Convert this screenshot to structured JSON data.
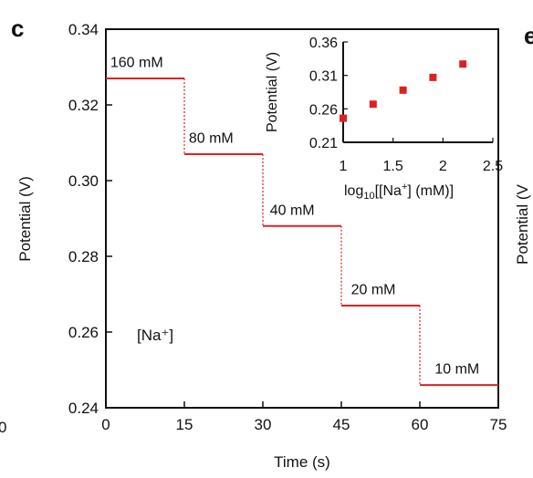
{
  "panel": {
    "letter": "c",
    "next_panel_fragment": "e",
    "edge_ylabel_fragment": "Potential (V",
    "edge_xtick_fragment": "0"
  },
  "colors": {
    "data": "#e02020",
    "axes": "#111111",
    "background": "#ffffff"
  },
  "chart_data": [
    {
      "type": "line",
      "subtitle": "[Na⁺]",
      "xlabel": "Time (s)",
      "ylabel": "Potential (V)",
      "xlim": [
        0,
        75
      ],
      "ylim": [
        0.24,
        0.34
      ],
      "xticks": [
        0,
        15,
        30,
        45,
        60,
        75
      ],
      "yticks": [
        0.24,
        0.26,
        0.28,
        0.3,
        0.32,
        0.34
      ],
      "xtick_labels": [
        "0",
        "15",
        "30",
        "45",
        "60",
        "75"
      ],
      "ytick_labels": [
        "0.24",
        "0.26",
        "0.28",
        "0.30",
        "0.32",
        "0.34"
      ],
      "grid": false,
      "series": [
        {
          "values": [
            [
              0,
              0.327
            ],
            [
              15,
              0.327
            ],
            [
              15,
              0.307
            ],
            [
              30,
              0.307
            ],
            [
              30,
              0.288
            ],
            [
              45,
              0.288
            ],
            [
              45,
              0.267
            ],
            [
              60,
              0.267
            ],
            [
              60,
              0.246
            ],
            [
              75,
              0.246
            ]
          ]
        }
      ],
      "annotations": [
        {
          "text": "160 mM",
          "x": 0.5,
          "y": 0.3295
        },
        {
          "text": "80 mM",
          "x": 15.5,
          "y": 0.3095
        },
        {
          "text": "40 mM",
          "x": 31,
          "y": 0.2905
        },
        {
          "text": "20 mM",
          "x": 46.5,
          "y": 0.2695
        },
        {
          "text": "10 mM",
          "x": 62.5,
          "y": 0.2485
        }
      ]
    },
    {
      "type": "scatter",
      "xlabel": "log10[[Na⁺] (mM)]",
      "ylabel": "Potential (V)",
      "xlim": [
        1,
        2.5
      ],
      "ylim": [
        0.21,
        0.36
      ],
      "xticks": [
        1,
        1.5,
        2,
        2.5
      ],
      "yticks": [
        0.21,
        0.26,
        0.31,
        0.36
      ],
      "xtick_labels": [
        "1",
        "1.5",
        "2",
        "2.5"
      ],
      "ytick_labels": [
        "0.21",
        "0.26",
        "0.31",
        "0.36"
      ],
      "grid": false,
      "series": [
        {
          "x": [
            1.0,
            1.3,
            1.6,
            1.9,
            2.2
          ],
          "y": [
            0.246,
            0.267,
            0.288,
            0.307,
            0.327
          ]
        }
      ]
    }
  ]
}
